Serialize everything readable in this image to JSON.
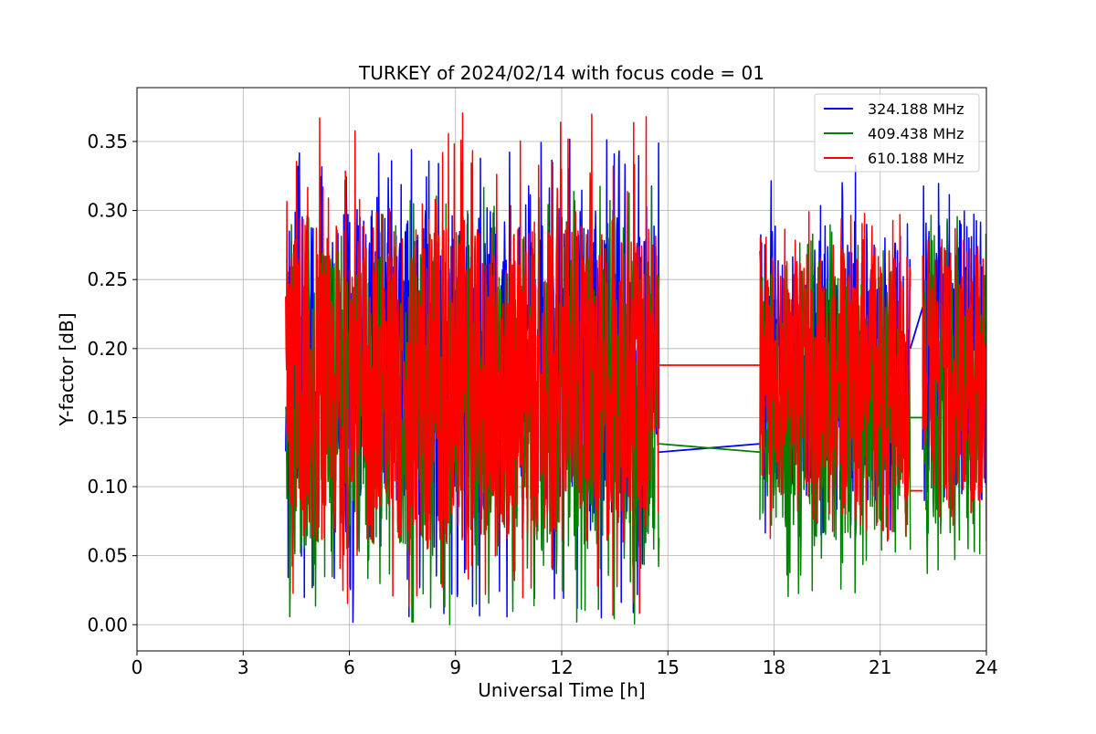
{
  "chart_data": {
    "type": "line",
    "title": "TURKEY of 2024/02/14 with focus code = 01",
    "xlabel": "Universal Time [h]",
    "ylabel": "Y-factor [dB]",
    "xlim": [
      0,
      24
    ],
    "ylim": [
      -0.019,
      0.389
    ],
    "xticks": [
      0,
      3,
      6,
      9,
      12,
      15,
      18,
      21,
      24
    ],
    "xtick_labels": [
      "0",
      "3",
      "6",
      "9",
      "12",
      "15",
      "18",
      "21",
      "24"
    ],
    "yticks": [
      0.0,
      0.05,
      0.1,
      0.15,
      0.2,
      0.25,
      0.3,
      0.35
    ],
    "ytick_labels": [
      "0.00",
      "0.05",
      "0.10",
      "0.15",
      "0.20",
      "0.25",
      "0.30",
      "0.35"
    ],
    "grid": true,
    "legend_position": "top-right",
    "series": [
      {
        "name": "324.188 MHz",
        "color": "#0000ff",
        "segments": [
          {
            "x_start": 4.2,
            "x_end": 14.75,
            "y_min": 0.0,
            "y_max": 0.353,
            "y_typical_low": 0.08,
            "y_typical_high": 0.3
          },
          {
            "x_start": 17.6,
            "x_end": 21.85,
            "y_min": 0.06,
            "y_max": 0.333,
            "y_typical_low": 0.09,
            "y_typical_high": 0.28
          },
          {
            "x_start": 22.2,
            "x_end": 24.0,
            "y_min": 0.06,
            "y_max": 0.35,
            "y_typical_low": 0.09,
            "y_typical_high": 0.3
          }
        ],
        "gap_connectors": [
          {
            "x": [
              14.75,
              17.6
            ],
            "y": [
              0.125,
              0.131
            ]
          },
          {
            "x": [
              21.85,
              22.2
            ],
            "y": [
              0.2,
              0.23
            ]
          }
        ]
      },
      {
        "name": "409.438 MHz",
        "color": "#008000",
        "segments": [
          {
            "x_start": 4.2,
            "x_end": 14.75,
            "y_min": 0.0,
            "y_max": 0.32,
            "y_typical_low": 0.05,
            "y_typical_high": 0.27
          },
          {
            "x_start": 17.6,
            "x_end": 21.85,
            "y_min": 0.02,
            "y_max": 0.3,
            "y_typical_low": 0.06,
            "y_typical_high": 0.26
          },
          {
            "x_start": 22.2,
            "x_end": 24.0,
            "y_min": 0.03,
            "y_max": 0.3,
            "y_typical_low": 0.06,
            "y_typical_high": 0.26
          }
        ],
        "gap_connectors": [
          {
            "x": [
              14.75,
              17.6
            ],
            "y": [
              0.131,
              0.125
            ]
          },
          {
            "x": [
              21.85,
              22.2
            ],
            "y": [
              0.15,
              0.15
            ]
          }
        ]
      },
      {
        "name": "610.188 MHz",
        "color": "#ff0000",
        "segments": [
          {
            "x_start": 4.2,
            "x_end": 14.75,
            "y_min": 0.0,
            "y_max": 0.371,
            "y_typical_low": 0.06,
            "y_typical_high": 0.29
          },
          {
            "x_start": 17.6,
            "x_end": 21.85,
            "y_min": 0.06,
            "y_max": 0.3,
            "y_typical_low": 0.09,
            "y_typical_high": 0.27
          },
          {
            "x_start": 22.2,
            "x_end": 24.0,
            "y_min": 0.07,
            "y_max": 0.33,
            "y_typical_low": 0.09,
            "y_typical_high": 0.28
          }
        ],
        "gap_connectors": [
          {
            "x": [
              14.75,
              17.6
            ],
            "y": [
              0.188,
              0.188
            ]
          },
          {
            "x": [
              21.85,
              22.2
            ],
            "y": [
              0.097,
              0.097
            ]
          }
        ]
      }
    ]
  }
}
